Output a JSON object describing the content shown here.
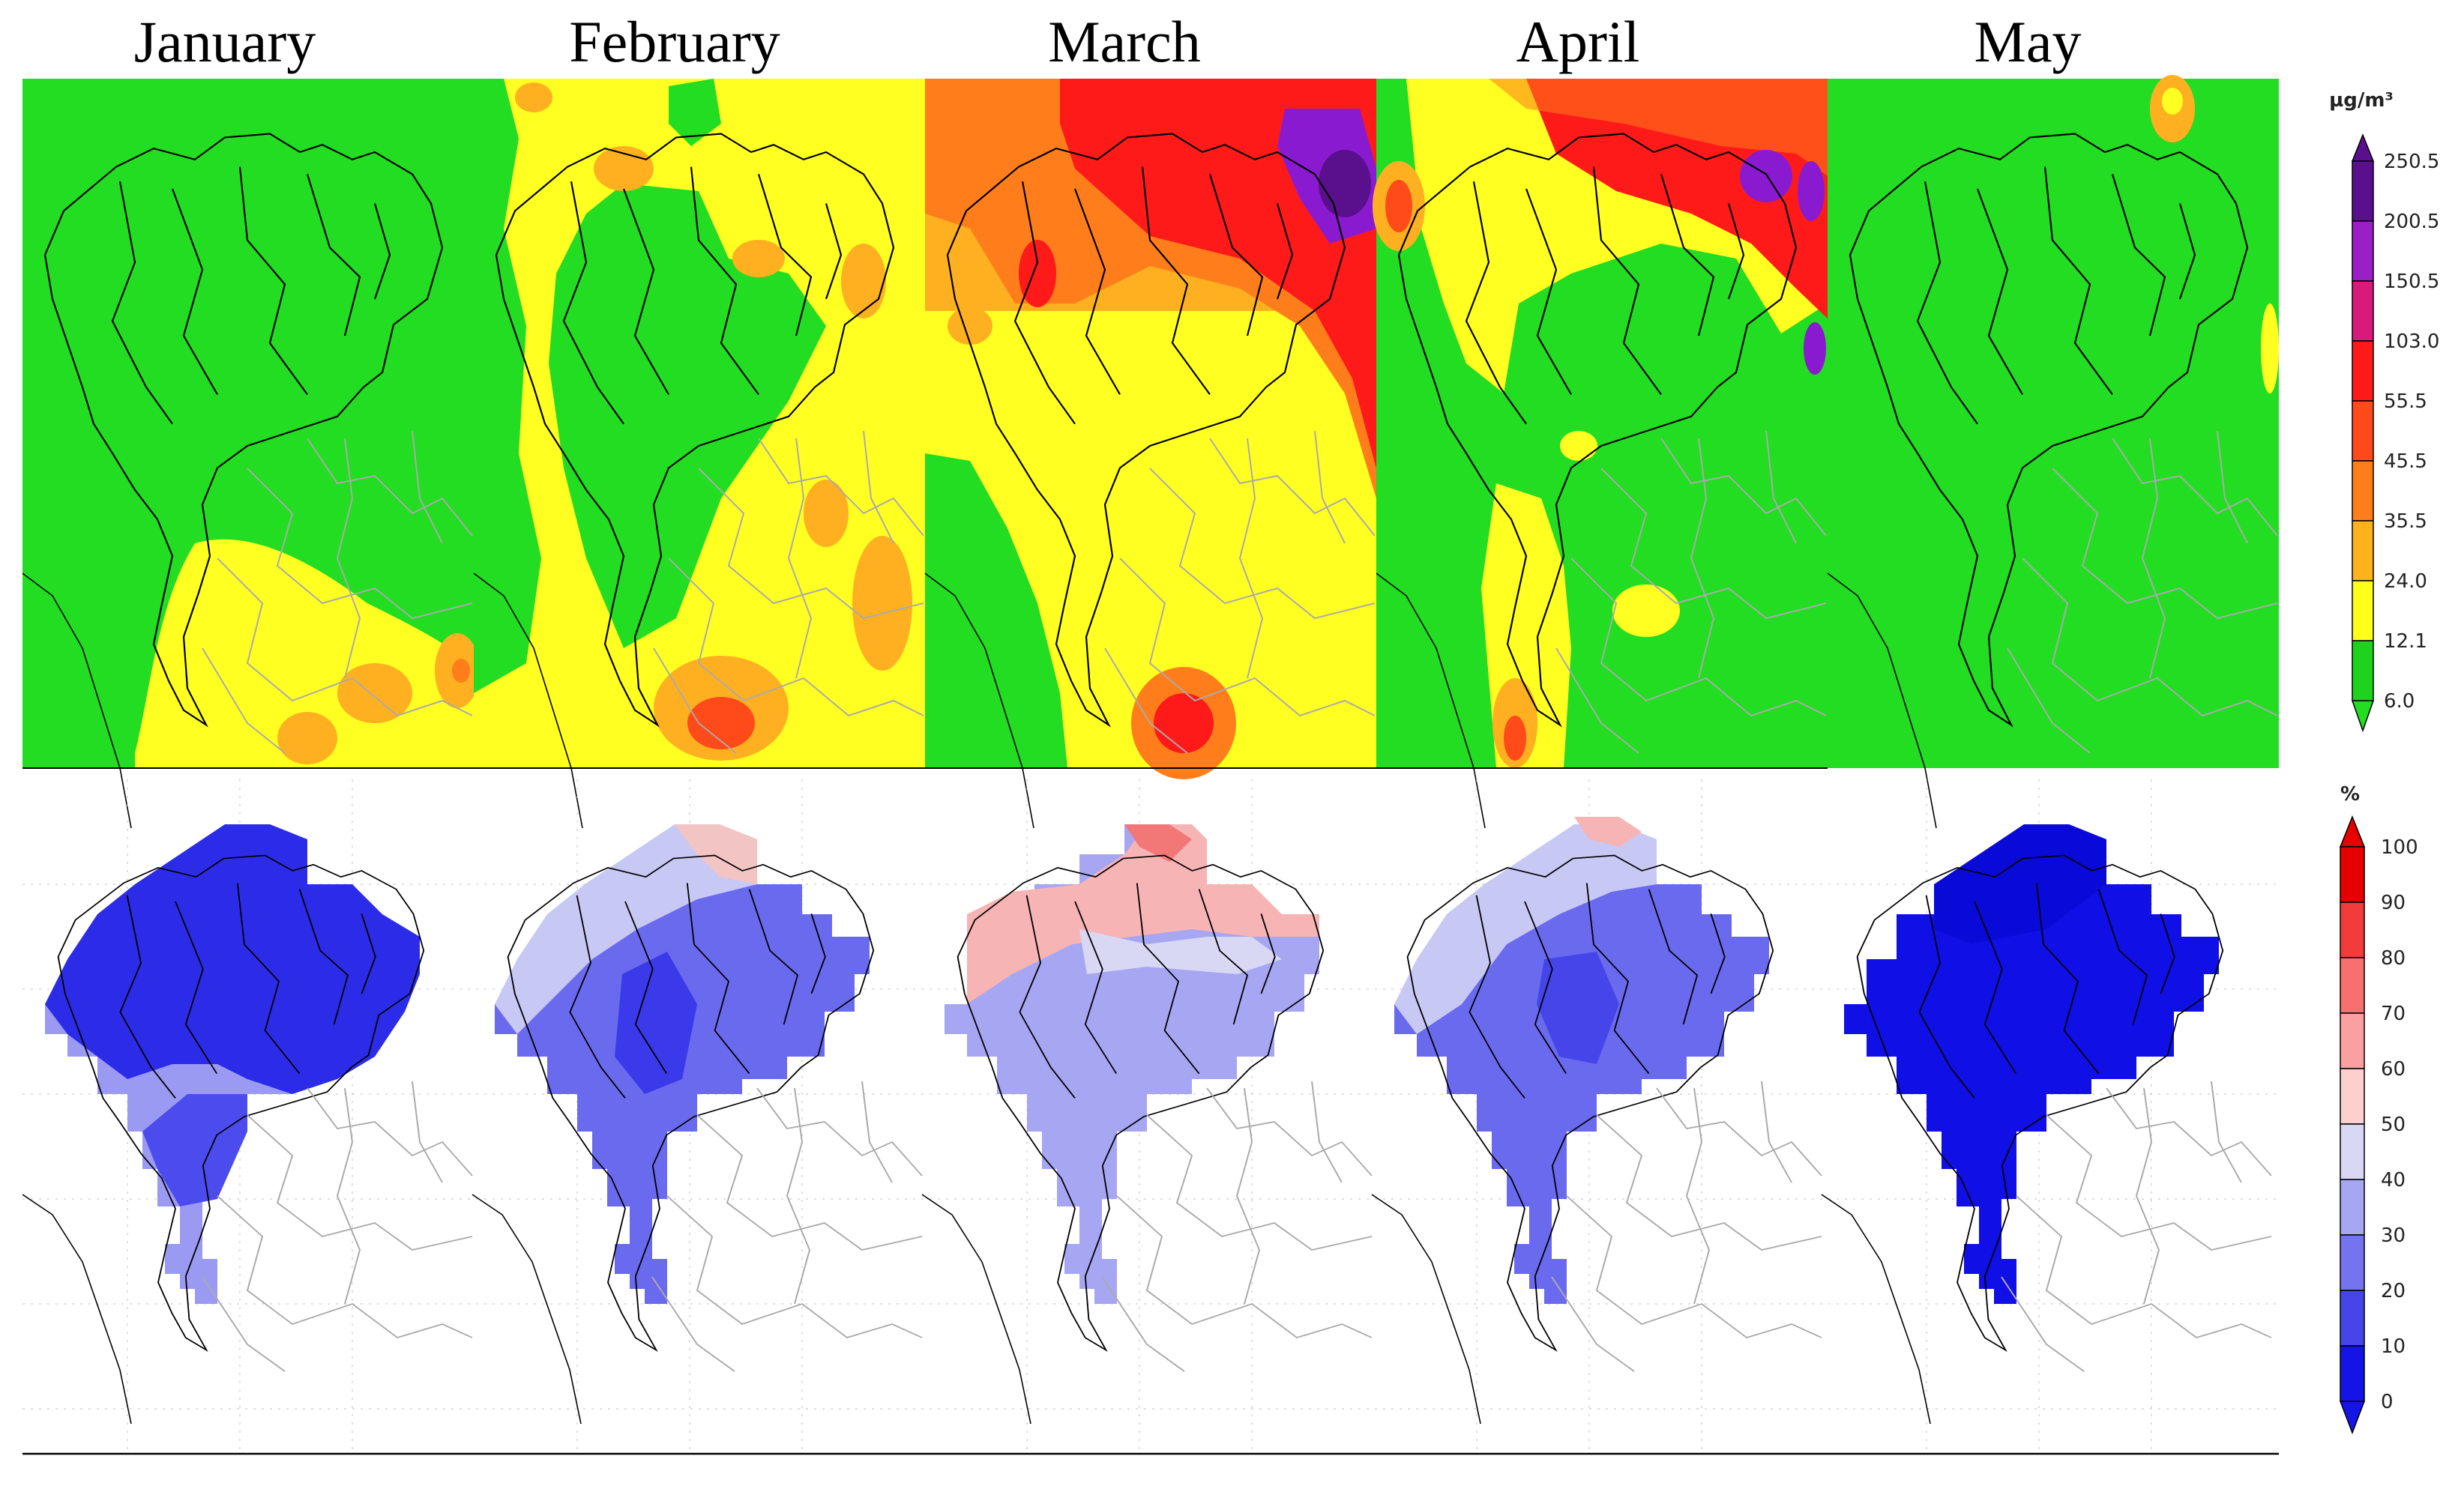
{
  "months": [
    "January",
    "February",
    "March",
    "April",
    "May"
  ],
  "pm_colorbar": {
    "unit": "µg/m³",
    "labels": [
      "250.5",
      "200.5",
      "150.5",
      "103.0",
      "55.5",
      "45.5",
      "35.5",
      "24.0",
      "12.1",
      "6.0"
    ],
    "colors": [
      "#5a0f8c",
      "#9b1fc6",
      "#d81b7a",
      "#ff1a1a",
      "#ff4a1a",
      "#ff7d1a",
      "#ffb21a",
      "#ffff1a",
      "#1ed21e"
    ]
  },
  "pct_colorbar": {
    "unit": "%",
    "labels": [
      "100",
      "90",
      "80",
      "70",
      "60",
      "50",
      "40",
      "30",
      "20",
      "10",
      "0"
    ],
    "colors": [
      "#e60000",
      "#f23c3c",
      "#f77070",
      "#faa0a0",
      "#fdd0d0",
      "#d8d8f4",
      "#a6a6f2",
      "#7474ee",
      "#4545ea",
      "#1414e6"
    ]
  },
  "colors": {
    "pm_green": "#22dd22",
    "pm_yellow": "#ffff22",
    "pm_orange": "#ffb020",
    "pm_red": "#ff1a1a",
    "pm_purple": "#8a1ad0",
    "pct_blue_dark": "#1010e6",
    "pct_blue": "#4c4cee",
    "pct_blue_light": "#9a9af2",
    "pct_pink": "#f7b4b4"
  }
}
